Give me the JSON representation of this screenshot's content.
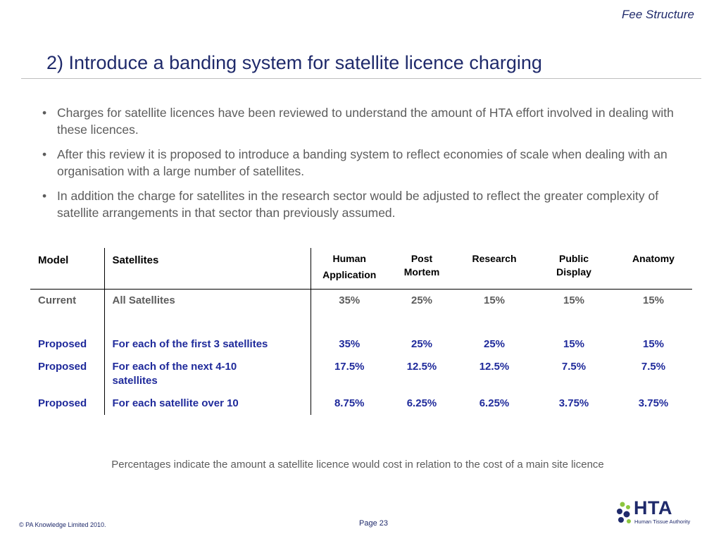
{
  "header": {
    "section_label": "Fee Structure",
    "title": "2) Introduce a banding system for satellite licence charging"
  },
  "bullets": [
    "Charges for satellite licences have been reviewed to understand the amount of HTA effort involved in dealing with these licences.",
    "After this review it is proposed to introduce a banding system to reflect economies of scale when dealing with an organisation with a large number of satellites.",
    "In addition the charge for satellites in the research sector would be adjusted to reflect the greater complexity of satellite arrangements in that sector than previously assumed."
  ],
  "bullet_glyph": "•",
  "table": {
    "headers": {
      "model": "Model",
      "satellites": "Satellites",
      "human_application_1": "Human",
      "human_application_2": "Application",
      "post_mortem_1": "Post",
      "post_mortem_2": "Mortem",
      "research": "Research",
      "public_display_1": "Public",
      "public_display_2": "Display",
      "anatomy": "Anatomy"
    },
    "rows": [
      {
        "model": "Current",
        "satellites": "All Satellites",
        "human_application": "35%",
        "post_mortem": "25%",
        "research": "15%",
        "public_display": "15%",
        "anatomy": "15%"
      },
      {
        "model": "Proposed",
        "satellites": "For each of the first 3 satellites",
        "human_application": "35%",
        "post_mortem": "25%",
        "research": "25%",
        "public_display": "15%",
        "anatomy": "15%"
      },
      {
        "model": "Proposed",
        "satellites": "For each of the next 4-10 satellites",
        "human_application": "17.5%",
        "post_mortem": "12.5%",
        "research": "12.5%",
        "public_display": "7.5%",
        "anatomy": "7.5%"
      },
      {
        "model": "Proposed",
        "satellites": "For each satellite over 10",
        "human_application": "8.75%",
        "post_mortem": "6.25%",
        "research": "6.25%",
        "public_display": "3.75%",
        "anatomy": "3.75%"
      }
    ]
  },
  "footnote": "Percentages indicate the amount a satellite licence would cost in relation to the cost of a main site licence",
  "footer": {
    "copyright": "© PA Knowledge Limited 2010.",
    "page": "Page 23",
    "logo_text": "HTA",
    "logo_subtitle": "Human Tissue Authority"
  },
  "colors": {
    "title": "#1f2a6b",
    "proposed_text": "#1f2a9b",
    "body_text": "#5c5c5c",
    "logo_green": "#8cc63f",
    "logo_navy": "#1f2a6b"
  }
}
